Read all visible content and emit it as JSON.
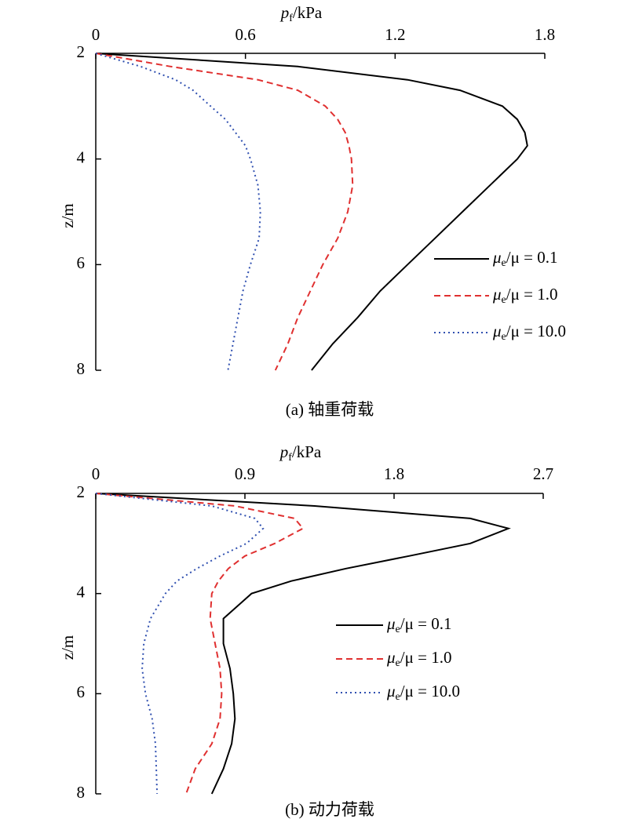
{
  "chart_data": [
    {
      "type": "line",
      "orientation": "vertical-depth",
      "x_label": "z/m",
      "y_label": {
        "text": "p",
        "sub": "f",
        "unit": "/kPa"
      },
      "caption": "(a) 轴重荷载",
      "x": [
        2,
        2.25,
        2.5,
        2.7,
        3,
        3.25,
        3.5,
        3.75,
        4,
        4.5,
        5,
        5.5,
        6,
        6.5,
        7,
        7.5,
        8
      ],
      "xlim": [
        2,
        8
      ],
      "xticks": [
        2,
        4,
        6,
        8
      ],
      "x_inverted": true,
      "ylim": [
        0,
        1.8
      ],
      "yticks": [
        0,
        0.6,
        1.2,
        1.8
      ],
      "legend_position": "center right",
      "series": [
        {
          "name": {
            "symbol": "μ",
            "sub": "e",
            "rest": "/μ = 0.1"
          },
          "color": "#000000",
          "dash": "solid",
          "values": [
            0,
            0.81,
            1.25,
            1.46,
            1.63,
            1.69,
            1.72,
            1.73,
            1.69,
            1.58,
            1.47,
            1.36,
            1.25,
            1.14,
            1.05,
            0.95,
            0.865
          ]
        },
        {
          "name": {
            "symbol": "μ",
            "sub": "e",
            "rest": "/μ = 1.0"
          },
          "color": "#e03030",
          "dash": "dashed",
          "values": [
            0,
            0.3,
            0.65,
            0.81,
            0.92,
            0.97,
            1.0,
            1.015,
            1.025,
            1.03,
            1.01,
            0.97,
            0.91,
            0.86,
            0.81,
            0.77,
            0.72
          ]
        },
        {
          "name": {
            "symbol": "μ",
            "sub": "e",
            "rest": "/μ = 10.0"
          },
          "color": "#3050b0",
          "dash": "dotted",
          "values": [
            0,
            0.18,
            0.32,
            0.39,
            0.46,
            0.52,
            0.56,
            0.6,
            0.62,
            0.65,
            0.66,
            0.655,
            0.62,
            0.59,
            0.57,
            0.55,
            0.53
          ]
        }
      ]
    },
    {
      "type": "line",
      "orientation": "vertical-depth",
      "x_label": "z/m",
      "y_label": {
        "text": "p",
        "sub": "f",
        "unit": "/kPa"
      },
      "caption": "(b) 动力荷载",
      "x": [
        2,
        2.25,
        2.5,
        2.7,
        3,
        3.25,
        3.5,
        3.75,
        4,
        4.5,
        5,
        5.5,
        6,
        6.5,
        7,
        7.5,
        8
      ],
      "xlim": [
        2,
        8
      ],
      "xticks": [
        2,
        4,
        6,
        8
      ],
      "x_inverted": true,
      "ylim": [
        0,
        2.7
      ],
      "yticks": [
        0,
        0.9,
        1.8,
        2.7
      ],
      "legend_position": "center right",
      "series": [
        {
          "name": {
            "symbol": "μ",
            "sub": "e",
            "rest": "/μ = 0.1"
          },
          "color": "#000000",
          "dash": "solid",
          "values": [
            0,
            1.32,
            2.26,
            2.49,
            2.26,
            1.89,
            1.51,
            1.18,
            0.94,
            0.77,
            0.77,
            0.81,
            0.83,
            0.84,
            0.82,
            0.77,
            0.7
          ]
        },
        {
          "name": {
            "symbol": "μ",
            "sub": "e",
            "rest": "/μ = 1.0"
          },
          "color": "#e03030",
          "dash": "dashed",
          "values": [
            0,
            0.84,
            1.2,
            1.25,
            1.08,
            0.9,
            0.8,
            0.74,
            0.7,
            0.69,
            0.72,
            0.75,
            0.76,
            0.75,
            0.7,
            0.6,
            0.545
          ]
        },
        {
          "name": {
            "symbol": "μ",
            "sub": "e",
            "rest": "/μ = 10.0"
          },
          "color": "#3050b0",
          "dash": "dotted",
          "values": [
            0,
            0.7,
            0.96,
            1.01,
            0.91,
            0.75,
            0.61,
            0.49,
            0.42,
            0.33,
            0.29,
            0.28,
            0.3,
            0.34,
            0.36,
            0.365,
            0.37
          ]
        }
      ]
    }
  ]
}
